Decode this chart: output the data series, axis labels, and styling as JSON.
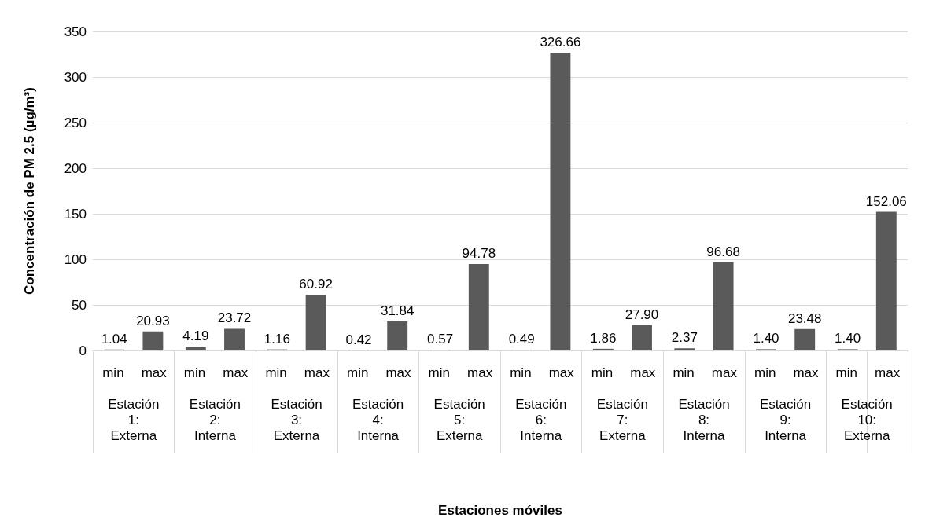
{
  "chart_data": {
    "type": "bar",
    "xlabel": "Estaciones móviles",
    "ylabel": "Concentración de PM 2.5 (µg/m³)",
    "categories": [
      "Estación 1: Externa",
      "Estación 2: Interna",
      "Estación 3: Externa",
      "Estación 4: Interna",
      "Estación 5: Externa",
      "Estación 6: Interna",
      "Estación 7: Externa",
      "Estación 8: Interna",
      "Estación 9: Interna",
      "Estación 10: Externa"
    ],
    "series": [
      {
        "name": "min",
        "color": "#5a5a5a",
        "values": [
          1.04,
          4.19,
          1.16,
          0.42,
          0.57,
          0.49,
          1.86,
          2.37,
          1.4,
          1.4
        ],
        "value_labels": [
          "1.04",
          "4.19",
          "1.16",
          "0.42",
          "0.57",
          "0.49",
          "1.86",
          "2.37",
          "1.40",
          "1.40"
        ]
      },
      {
        "name": "max",
        "color": "#5a5a5a",
        "values": [
          20.93,
          23.72,
          60.92,
          31.84,
          94.78,
          326.66,
          27.9,
          96.68,
          23.48,
          152.06
        ],
        "value_labels": [
          "20.93",
          "23.72",
          "60.92",
          "31.84",
          "94.78",
          "326.66",
          "27.90",
          "96.68",
          "23.48",
          "152.06"
        ]
      }
    ],
    "ylim": [
      0,
      350
    ],
    "yticks": [
      0,
      50,
      100,
      150,
      200,
      250,
      300,
      350
    ],
    "grid": "y",
    "legend": false
  }
}
